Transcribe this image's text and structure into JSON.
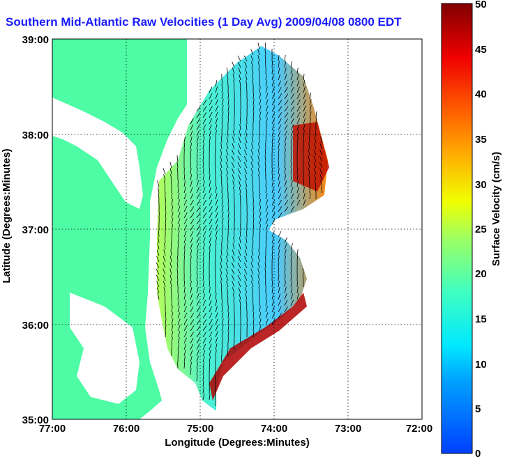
{
  "title": "Southern Mid-Atlantic Raw Velocities (1 Day Avg) 2009/04/08 0800 EDT",
  "x_axis": {
    "label": "Longitude (Degrees:Minutes)",
    "ticks": [
      "77:00",
      "76:00",
      "75:00",
      "74:00",
      "73:00",
      "72:00"
    ]
  },
  "y_axis": {
    "label": "Latitude (Degrees:Minutes)",
    "ticks": [
      "39:00",
      "38:00",
      "37:00",
      "36:00",
      "35:00"
    ]
  },
  "colorbar": {
    "label": "Surface Velocity (cm/s)",
    "ticks": [
      "50",
      "45",
      "40",
      "35",
      "30",
      "25",
      "20",
      "15",
      "10",
      "5",
      "0"
    ],
    "min": 0,
    "max": 50
  },
  "map_extent": {
    "lon": [
      -77,
      -72
    ],
    "lat": [
      35,
      39
    ]
  },
  "colors": {
    "land": "#4dfca4",
    "title": "#1a1aff",
    "grid": "#000000"
  }
}
